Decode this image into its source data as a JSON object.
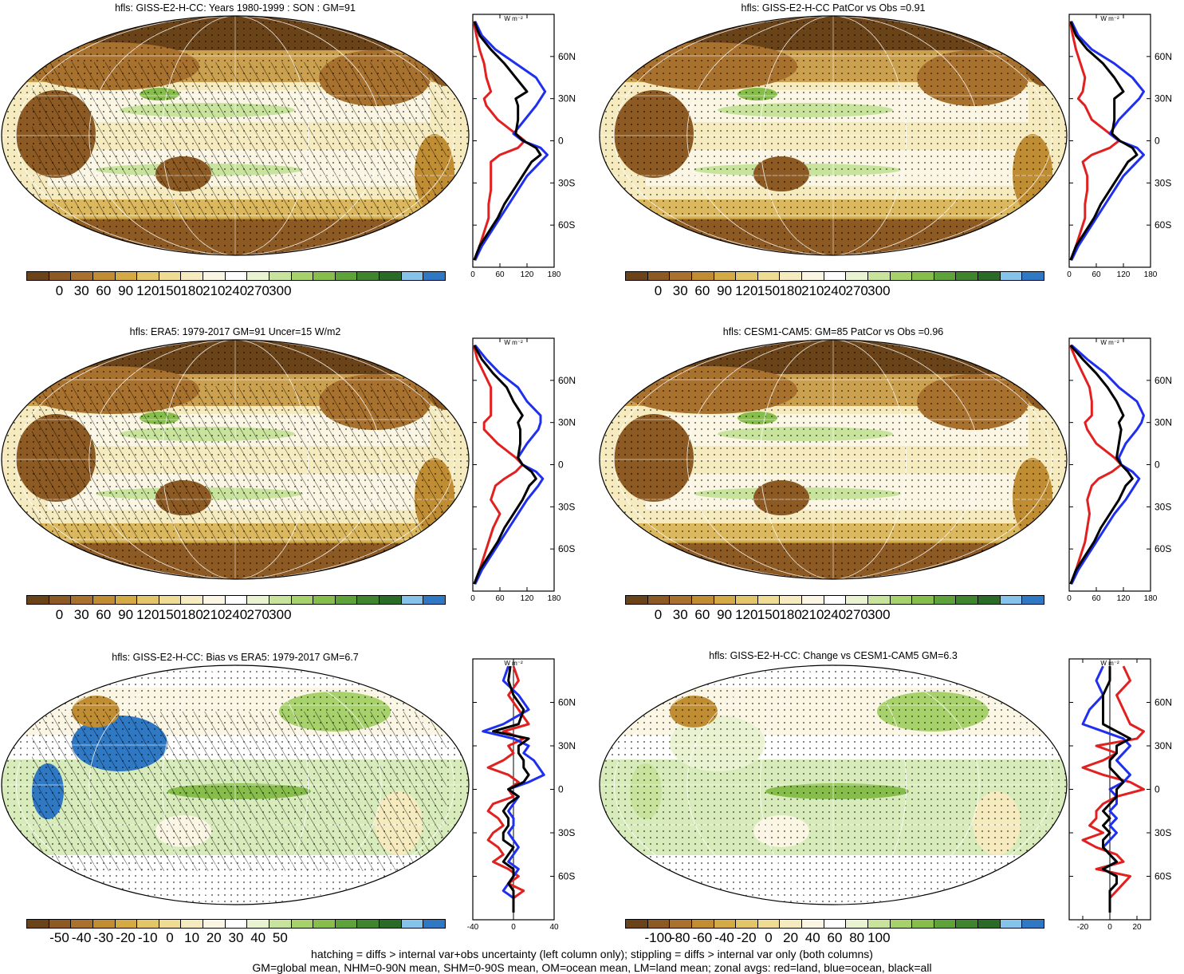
{
  "colors": {
    "scale_abs": [
      "#6b4318",
      "#8c5a22",
      "#a8712d",
      "#c08d33",
      "#d4aa45",
      "#e3c56a",
      "#eedb94",
      "#f5ebbf",
      "#faf6e3",
      "#ffffff",
      "#e9f3d1",
      "#c8e39c",
      "#a7d16a",
      "#86bd4b",
      "#5ea33a",
      "#3f852e",
      "#2a6b25",
      "#86c3ea",
      "#2f78c4"
    ],
    "land": "#e22020",
    "ocean": "#1f2ff0",
    "all": "#000000"
  },
  "zonal_unit": "W m⁻²",
  "lat_labels": [
    "60N",
    "30N",
    "0",
    "30S",
    "60S"
  ],
  "footnote": {
    "line1": "hatching = diffs > internal var+obs uncertainty (left column only); stippling = diffs > internal var only (both columns)",
    "line2": "GM=global mean, NHM=0-90N mean, SHM=0-90S mean, OM=ocean mean, LM=land mean; zonal avgs: red=land, blue=ocean, black=all"
  },
  "chart_data": [
    {
      "type": "heatmap",
      "title": "hfls: GISS-E2-H-CC: Years 1980-1999 : SON : GM=91",
      "colorbar_ticks": [
        "0",
        "30",
        "60",
        "90",
        "120",
        "150",
        "180",
        "210",
        "240",
        "270",
        "300"
      ],
      "colorbar_range": [
        -15,
        315
      ],
      "zonal": {
        "type": "line",
        "x_ticks": [
          "0",
          "60",
          "120",
          "180"
        ],
        "xlim": [
          0,
          180
        ],
        "lat": [
          85,
          75,
          65,
          55,
          45,
          35,
          30,
          25,
          15,
          5,
          0,
          -5,
          -10,
          -15,
          -25,
          -35,
          -45,
          -55,
          -65,
          -75,
          -85
        ],
        "series": [
          {
            "color_key": "land",
            "values": [
              2,
              8,
              15,
              25,
              30,
              40,
              25,
              30,
              55,
              95,
              115,
              100,
              60,
              40,
              40,
              40,
              35,
              35,
              25,
              15,
              5
            ]
          },
          {
            "color_key": "ocean",
            "values": [
              5,
              20,
              50,
              95,
              140,
              160,
              150,
              140,
              115,
              90,
              110,
              150,
              165,
              150,
              120,
              100,
              80,
              60,
              40,
              20,
              5
            ]
          },
          {
            "color_key": "all",
            "values": [
              3,
              15,
              40,
              70,
              95,
              120,
              95,
              100,
              100,
              95,
              112,
              140,
              150,
              130,
              110,
              90,
              70,
              55,
              35,
              15,
              3
            ]
          }
        ]
      }
    },
    {
      "type": "heatmap",
      "title": "hfls: GISS-E2-H-CC PatCor vs Obs =0.91",
      "colorbar_ticks": [
        "0",
        "30",
        "60",
        "90",
        "120",
        "150",
        "180",
        "210",
        "240",
        "270",
        "300"
      ],
      "colorbar_range": [
        -15,
        315
      ],
      "zonal": {
        "type": "line",
        "x_ticks": [
          "0",
          "60",
          "120",
          "180"
        ],
        "xlim": [
          0,
          180
        ],
        "lat": [
          85,
          75,
          65,
          55,
          45,
          35,
          30,
          25,
          15,
          5,
          0,
          -5,
          -10,
          -15,
          -25,
          -35,
          -45,
          -55,
          -65,
          -75,
          -85
        ],
        "series": [
          {
            "color_key": "land",
            "values": [
              2,
              8,
              15,
              25,
              35,
              30,
              20,
              35,
              50,
              90,
              110,
              90,
              50,
              30,
              40,
              40,
              35,
              35,
              25,
              15,
              5
            ]
          },
          {
            "color_key": "ocean",
            "values": [
              5,
              20,
              50,
              100,
              140,
              165,
              155,
              140,
              110,
              90,
              110,
              150,
              165,
              150,
              120,
              100,
              80,
              60,
              40,
              20,
              5
            ]
          },
          {
            "color_key": "all",
            "values": [
              3,
              15,
              40,
              75,
              100,
              120,
              100,
              100,
              100,
              95,
              112,
              140,
              150,
              130,
              110,
              90,
              70,
              55,
              35,
              15,
              3
            ]
          }
        ]
      }
    },
    {
      "type": "heatmap",
      "title": "hfls: ERA5: 1979-2017 GM=91 Uncer=15 W/m2",
      "colorbar_ticks": [
        "0",
        "30",
        "60",
        "90",
        "120",
        "150",
        "180",
        "210",
        "240",
        "270",
        "300"
      ],
      "colorbar_range": [
        -15,
        315
      ],
      "zonal": {
        "type": "line",
        "x_ticks": [
          "0",
          "60",
          "120",
          "180"
        ],
        "xlim": [
          0,
          180
        ],
        "lat": [
          85,
          75,
          65,
          55,
          45,
          35,
          30,
          25,
          15,
          5,
          0,
          -5,
          -10,
          -15,
          -25,
          -35,
          -45,
          -55,
          -65,
          -75,
          -85
        ],
        "series": [
          {
            "color_key": "land",
            "values": [
              2,
              10,
              25,
              40,
              40,
              40,
              25,
              25,
              55,
              95,
              110,
              95,
              70,
              50,
              40,
              60,
              45,
              35,
              25,
              15,
              5
            ]
          },
          {
            "color_key": "ocean",
            "values": [
              5,
              30,
              60,
              100,
              120,
              150,
              150,
              145,
              120,
              100,
              110,
              140,
              155,
              145,
              120,
              100,
              80,
              60,
              40,
              20,
              5
            ]
          },
          {
            "color_key": "all",
            "values": [
              3,
              20,
              45,
              75,
              90,
              110,
              100,
              105,
              105,
              100,
              110,
              130,
              140,
              125,
              110,
              90,
              70,
              55,
              35,
              15,
              3
            ]
          }
        ]
      }
    },
    {
      "type": "heatmap",
      "title": "hfls: CESM1-CAM5: GM=85 PatCor vs Obs =0.96",
      "colorbar_ticks": [
        "0",
        "30",
        "60",
        "90",
        "120",
        "150",
        "180",
        "210",
        "240",
        "270",
        "300"
      ],
      "colorbar_range": [
        -15,
        315
      ],
      "zonal": {
        "type": "line",
        "x_ticks": [
          "0",
          "60",
          "120",
          "180"
        ],
        "xlim": [
          0,
          180
        ],
        "lat": [
          85,
          75,
          65,
          55,
          45,
          35,
          30,
          25,
          15,
          5,
          0,
          -5,
          -10,
          -15,
          -25,
          -35,
          -45,
          -55,
          -65,
          -75,
          -85
        ],
        "series": [
          {
            "color_key": "land",
            "values": [
              2,
              15,
              30,
              45,
              50,
              50,
              35,
              40,
              60,
              100,
              115,
              95,
              65,
              50,
              40,
              45,
              40,
              35,
              25,
              15,
              5
            ]
          },
          {
            "color_key": "ocean",
            "values": [
              5,
              40,
              80,
              110,
              150,
              165,
              160,
              150,
              125,
              110,
              115,
              140,
              155,
              145,
              125,
              100,
              80,
              60,
              40,
              20,
              5
            ]
          },
          {
            "color_key": "all",
            "values": [
              3,
              30,
              60,
              85,
              105,
              120,
              110,
              115,
              110,
              105,
              115,
              130,
              140,
              125,
              110,
              90,
              70,
              55,
              35,
              15,
              3
            ]
          }
        ]
      }
    },
    {
      "type": "heatmap",
      "title": "hfls: GISS-E2-H-CC: Bias vs ERA5: 1979-2017  GM=6.7",
      "colorbar_ticks": [
        "-50",
        "-40",
        "-30",
        "-20",
        "-10",
        "0",
        "10",
        "20",
        "30",
        "40",
        "50"
      ],
      "colorbar_range": [
        -55,
        55
      ],
      "zonal": {
        "type": "line",
        "x_ticks": [
          "-40",
          "0",
          "40"
        ],
        "xlim": [
          -40,
          40
        ],
        "lat": [
          85,
          75,
          65,
          55,
          45,
          40,
          35,
          30,
          25,
          20,
          15,
          10,
          5,
          0,
          -5,
          -10,
          -15,
          -20,
          -25,
          -30,
          -35,
          -40,
          -45,
          -50,
          -55,
          -60,
          -65,
          -70,
          -75,
          -85
        ],
        "series": [
          {
            "color_key": "land",
            "values": [
              0,
              5,
              -5,
              5,
              15,
              -10,
              10,
              -5,
              0,
              -10,
              -25,
              -5,
              5,
              -5,
              0,
              -20,
              -25,
              -15,
              -10,
              -20,
              -25,
              -15,
              -10,
              -20,
              -5,
              5,
              -5,
              10,
              0,
              0
            ]
          },
          {
            "color_key": "ocean",
            "values": [
              -5,
              -10,
              5,
              15,
              -10,
              -30,
              0,
              15,
              10,
              20,
              25,
              30,
              15,
              -5,
              5,
              0,
              -5,
              0,
              0,
              -5,
              0,
              5,
              0,
              -5,
              5,
              0,
              -5,
              -10,
              0,
              0
            ]
          },
          {
            "color_key": "all",
            "values": [
              -3,
              -5,
              0,
              10,
              5,
              -20,
              15,
              5,
              5,
              10,
              10,
              15,
              10,
              -5,
              5,
              -5,
              -10,
              -5,
              -5,
              -10,
              -10,
              0,
              -5,
              -10,
              0,
              0,
              -5,
              0,
              0,
              0
            ]
          }
        ]
      }
    },
    {
      "type": "heatmap",
      "title": "hfls: GISS-E2-H-CC: Change vs CESM1-CAM5 GM=6.3",
      "colorbar_ticks": [
        "-100",
        "-80",
        "-60",
        "-40",
        "-20",
        "0",
        "20",
        "40",
        "60",
        "80",
        "100"
      ],
      "colorbar_range": [
        -110,
        110
      ],
      "zonal": {
        "type": "line",
        "x_ticks": [
          "-20",
          "0",
          "20"
        ],
        "xlim": [
          -30,
          30
        ],
        "lat": [
          85,
          75,
          65,
          55,
          45,
          40,
          35,
          30,
          25,
          20,
          15,
          10,
          5,
          0,
          -5,
          -10,
          -15,
          -20,
          -25,
          -30,
          -35,
          -40,
          -45,
          -50,
          -55,
          -60,
          -65,
          -70,
          -75,
          -85
        ],
        "series": [
          {
            "color_key": "land",
            "values": [
              10,
              15,
              5,
              10,
              15,
              25,
              20,
              -10,
              5,
              -5,
              -20,
              -5,
              15,
              25,
              5,
              -5,
              -10,
              -10,
              -15,
              -5,
              -20,
              -10,
              5,
              10,
              -10,
              15,
              10,
              5,
              0,
              0
            ]
          },
          {
            "color_key": "ocean",
            "values": [
              -5,
              -10,
              -5,
              -15,
              -20,
              -5,
              10,
              15,
              10,
              5,
              10,
              15,
              10,
              0,
              5,
              5,
              0,
              5,
              0,
              5,
              0,
              -5,
              0,
              5,
              -5,
              5,
              5,
              0,
              0,
              0
            ]
          },
          {
            "color_key": "all",
            "values": [
              0,
              0,
              -5,
              -5,
              -5,
              5,
              15,
              5,
              5,
              0,
              0,
              5,
              10,
              5,
              5,
              0,
              -5,
              0,
              -5,
              0,
              -5,
              -5,
              0,
              5,
              -5,
              5,
              5,
              0,
              0,
              0
            ]
          }
        ]
      }
    }
  ]
}
